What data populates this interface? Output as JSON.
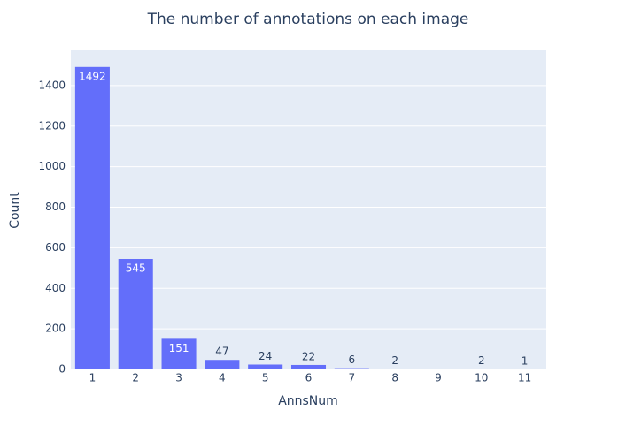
{
  "chart_data": {
    "type": "bar",
    "title": "The number of annotations on each image",
    "x_label": "AnnsNum",
    "y_label": "Count",
    "categories": [
      "1",
      "2",
      "3",
      "4",
      "5",
      "6",
      "7",
      "8",
      "9",
      "10",
      "11"
    ],
    "values": [
      1492,
      545,
      151,
      47,
      24,
      22,
      6,
      2,
      0,
      2,
      1
    ],
    "value_labels": [
      "1492",
      "545",
      "151",
      "47",
      "24",
      "22",
      "6",
      "2",
      null,
      "2",
      "1"
    ],
    "color": "#636efa",
    "ylim": [
      0,
      1574
    ],
    "yticks": [
      0,
      200,
      400,
      600,
      800,
      1000,
      1200,
      1400
    ],
    "grid": true
  }
}
